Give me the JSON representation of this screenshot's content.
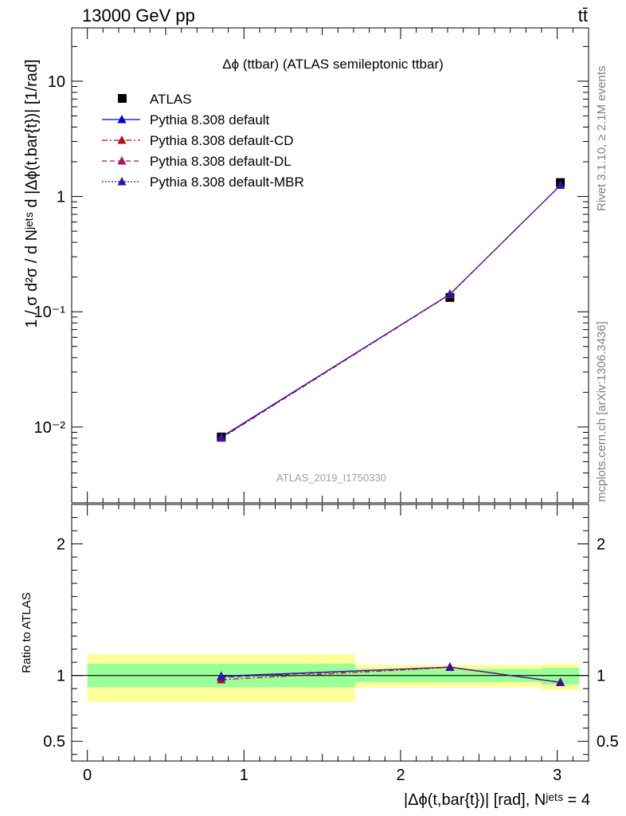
{
  "header": {
    "left": "13000 GeV pp",
    "right": "tt̄"
  },
  "side_texts": {
    "rivet": "Rivet 3.1.10, ≥ 2.1M events",
    "mcplots": "mcplots.cern.ch [arXiv:1306.3436]"
  },
  "analysis_id": "ATLAS_2019_I1750330",
  "chart_data": [
    {
      "type": "scatter",
      "title": "Δϕ (ttbar) (ATLAS semileptonic ttbar)",
      "ylabel": "1 / σ d²σ / d Nʲᵉᵗˢ d |Δϕ(t,bar{t})| [1/rad]",
      "xlabel": "|Δϕ(t,bar{t})| [rad], Nʲᵉᵗˢ = 4",
      "y_scale": "log",
      "xlim": [
        -0.1,
        3.2
      ],
      "ylim": [
        0.0022,
        29
      ],
      "y_ticks": [
        "10⁻²",
        "10⁻¹",
        "1",
        "10"
      ],
      "x": [
        0.855,
        2.315,
        3.02
      ],
      "legend_position": "top-left",
      "series": [
        {
          "name": "ATLAS",
          "values": [
            0.0082,
            0.133,
            1.32
          ],
          "marker": "square",
          "color": "#000000"
        },
        {
          "name": "Pythia 8.308 default",
          "values": [
            0.0082,
            0.142,
            1.25
          ],
          "marker": "triangle",
          "line": "solid",
          "color": "#0000cc"
        },
        {
          "name": "Pythia 8.308 default-CD",
          "values": [
            0.008,
            0.141,
            1.25
          ],
          "marker": "triangle",
          "line": "dashdot",
          "color": "#aa1111"
        },
        {
          "name": "Pythia 8.308 default-DL",
          "values": [
            0.0081,
            0.142,
            1.25
          ],
          "marker": "triangle",
          "line": "dashed",
          "color": "#aa1166"
        },
        {
          "name": "Pythia 8.308 default-MBR",
          "values": [
            0.0081,
            0.142,
            1.25
          ],
          "marker": "triangle",
          "line": "dotted",
          "color": "#3311aa"
        }
      ]
    },
    {
      "type": "line",
      "ylabel": "Ratio to ATLAS",
      "xlabel": "|Δϕ(t,bar{t})| [rad], Nʲᵉᵗˢ = 4",
      "xlim": [
        -0.1,
        3.2
      ],
      "ylim": [
        0.35,
        2.3
      ],
      "x_ticks": [
        "0",
        "1",
        "2",
        "3"
      ],
      "y_ticks": [
        "0.5",
        "1",
        "2"
      ],
      "x": [
        0.855,
        2.315,
        3.02
      ],
      "bands": [
        {
          "x_range": [
            0,
            1.71
          ],
          "inner": [
            0.91,
            1.09
          ],
          "outer": [
            0.8,
            1.16
          ]
        },
        {
          "x_range": [
            1.71,
            2.9
          ],
          "inner": [
            0.95,
            1.05
          ],
          "outer": [
            0.91,
            1.08
          ]
        },
        {
          "x_range": [
            2.9,
            3.14
          ],
          "inner": [
            0.93,
            1.06
          ],
          "outer": [
            0.89,
            1.09
          ]
        }
      ],
      "band_colors": {
        "inner": "#99ff99",
        "outer": "#ffff99"
      },
      "series": [
        {
          "name": "Pythia 8.308 default",
          "values": [
            0.995,
            1.063,
            0.948
          ],
          "color": "#0000cc",
          "line": "solid"
        },
        {
          "name": "Pythia 8.308 default-CD",
          "values": [
            0.968,
            1.062,
            0.948
          ],
          "color": "#aa1111",
          "line": "dashdot"
        },
        {
          "name": "Pythia 8.308 default-DL",
          "values": [
            0.985,
            1.065,
            0.948
          ],
          "color": "#aa1166",
          "line": "dashed"
        },
        {
          "name": "Pythia 8.308 default-MBR",
          "values": [
            0.99,
            1.064,
            0.948
          ],
          "color": "#3311aa",
          "line": "dotted"
        }
      ]
    }
  ]
}
